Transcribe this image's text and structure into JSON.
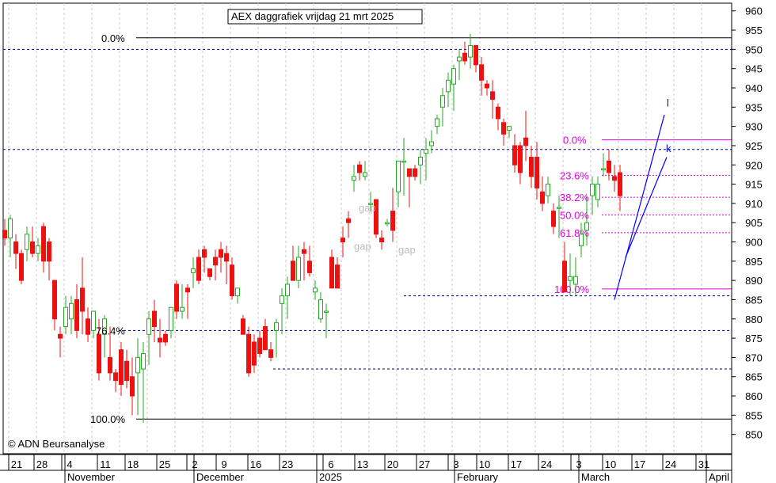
{
  "chart_data": {
    "type": "candlestick",
    "title": "AEX daggrafiek vrijdag 21 mrt 2025",
    "copyright": "© ADN Beursanalyse",
    "ylim": [
      845,
      962
    ],
    "y_ticks": [
      850,
      855,
      860,
      865,
      870,
      875,
      880,
      885,
      890,
      895,
      900,
      905,
      910,
      915,
      920,
      925,
      930,
      935,
      940,
      945,
      950,
      955,
      960
    ],
    "x_day_ticks": [
      "21",
      "28",
      "4",
      "11",
      "18",
      "25",
      "2",
      "9",
      "16",
      "23",
      "6",
      "13",
      "20",
      "27",
      "3",
      "10",
      "17",
      "24",
      "3",
      "10",
      "17",
      "24",
      "31"
    ],
    "month_labels": [
      "November",
      "December",
      "2025",
      "February",
      "March",
      "April"
    ],
    "colors": {
      "up": "#22aa22",
      "down": "#ee1111",
      "fib": "#e000e0",
      "trend": "#0000ff",
      "dotted": "#000080"
    },
    "fib_left": {
      "labels": [
        "0.0%",
        "76.4%",
        "100.0%"
      ],
      "levels": [
        953,
        877,
        854
      ]
    },
    "fib_right": {
      "labels": [
        "0.0%",
        "23.6%",
        "38.2%",
        "50.0%",
        "61.8%",
        "100.0%"
      ],
      "levels": [
        926.5,
        917.3,
        911.6,
        907.0,
        902.4,
        887.8
      ]
    },
    "horizontal_lines": [
      950,
      924,
      877,
      867,
      886
    ],
    "gap_labels": [
      "gap",
      "gap",
      "gap"
    ],
    "trend_labels": [
      "l",
      "k"
    ],
    "candles": [
      [
        903,
        906,
        899,
        901
      ],
      [
        901,
        907,
        896,
        906
      ],
      [
        900,
        902,
        893,
        897
      ],
      [
        897,
        898,
        889,
        890
      ],
      [
        898,
        904,
        895,
        902
      ],
      [
        900,
        904,
        896,
        897
      ],
      [
        897,
        901,
        895,
        899
      ],
      [
        904,
        905,
        892,
        895
      ],
      [
        900,
        901,
        890,
        895
      ],
      [
        890,
        890,
        877,
        880
      ],
      [
        876,
        878,
        870,
        875
      ],
      [
        878,
        886,
        876,
        883
      ],
      [
        880,
        886,
        876,
        884
      ],
      [
        885,
        889,
        875,
        877
      ],
      [
        888,
        896,
        876,
        882
      ],
      [
        880,
        883,
        874,
        876
      ],
      [
        877,
        882,
        875,
        882
      ],
      [
        876,
        880,
        864,
        866
      ],
      [
        876,
        881,
        870,
        880
      ],
      [
        870,
        878,
        864,
        866
      ],
      [
        866,
        867,
        861,
        864
      ],
      [
        872,
        874,
        860,
        863
      ],
      [
        869,
        872,
        862,
        864
      ],
      [
        865,
        870,
        855,
        860
      ],
      [
        866,
        875,
        855,
        870
      ],
      [
        867,
        874,
        853,
        871
      ],
      [
        876,
        882,
        868,
        880
      ],
      [
        882,
        885,
        874,
        878
      ],
      [
        875,
        880,
        870,
        874
      ],
      [
        876,
        877,
        873,
        874
      ],
      [
        877,
        883,
        875,
        883
      ],
      [
        889,
        890,
        880,
        882
      ],
      [
        882,
        889,
        880,
        883
      ],
      [
        888,
        889,
        880,
        887
      ],
      [
        892,
        896,
        888,
        893
      ],
      [
        896,
        898,
        889,
        890
      ],
      [
        898,
        899,
        892,
        896
      ],
      [
        893,
        893,
        890,
        891
      ],
      [
        896,
        898,
        890,
        894
      ],
      [
        898,
        900,
        892,
        896
      ],
      [
        897,
        899,
        889,
        895
      ],
      [
        894,
        896,
        885,
        886
      ],
      [
        886,
        888,
        884,
        888
      ],
      [
        880,
        881,
        876,
        876
      ],
      [
        876,
        878,
        865,
        866
      ],
      [
        874,
        876,
        866,
        868
      ],
      [
        875,
        877,
        870,
        871
      ],
      [
        878,
        880,
        872,
        872
      ],
      [
        872,
        874,
        869,
        870
      ],
      [
        877,
        880,
        870,
        879
      ],
      [
        884,
        888,
        876,
        886
      ],
      [
        886,
        891,
        880,
        889
      ],
      [
        895,
        899,
        890,
        890
      ],
      [
        890,
        899,
        888,
        896
      ],
      [
        898,
        900,
        890,
        897
      ],
      [
        895,
        899,
        891,
        892
      ],
      [
        887,
        890,
        885,
        888
      ],
      [
        880,
        887,
        879,
        885
      ],
      [
        882,
        884,
        875,
        882
      ],
      [
        896,
        898,
        888,
        888
      ],
      [
        894,
        896,
        888,
        888
      ],
      [
        901,
        904,
        896,
        900
      ],
      [
        906,
        908,
        901,
        905
      ],
      [
        916,
        920,
        913,
        917
      ],
      [
        920,
        921,
        916,
        918
      ],
      [
        917,
        921,
        916,
        918
      ],
      [
        910,
        913,
        908,
        910
      ],
      [
        911,
        911,
        901,
        902
      ],
      [
        901,
        903,
        898,
        900
      ],
      [
        905,
        906,
        904,
        905
      ],
      [
        908,
        914,
        900,
        903
      ],
      [
        913,
        921,
        909,
        921
      ],
      [
        921,
        927,
        912,
        921
      ],
      [
        919,
        919,
        909,
        917
      ],
      [
        919,
        920,
        916,
        917
      ],
      [
        920,
        924,
        915,
        922
      ],
      [
        923,
        927,
        916,
        924
      ],
      [
        925,
        929,
        923,
        926
      ],
      [
        930,
        933,
        928,
        932
      ],
      [
        935,
        940,
        930,
        938
      ],
      [
        939,
        944,
        935,
        942
      ],
      [
        941,
        946,
        934,
        945
      ],
      [
        947,
        950,
        942,
        948
      ],
      [
        949,
        952,
        946,
        947
      ],
      [
        948,
        954,
        945,
        951
      ],
      [
        951,
        951,
        944,
        946
      ],
      [
        946,
        948,
        938,
        942
      ],
      [
        941,
        942,
        938,
        940
      ],
      [
        939,
        942,
        932,
        937
      ],
      [
        935,
        936,
        929,
        932
      ],
      [
        931,
        932,
        925,
        928
      ],
      [
        929,
        930,
        927,
        930
      ],
      [
        925,
        928,
        918,
        920
      ],
      [
        925,
        926,
        915,
        918
      ],
      [
        927,
        934,
        921,
        925
      ],
      [
        922,
        925,
        914,
        917
      ],
      [
        922,
        926,
        911,
        914
      ],
      [
        913,
        917,
        908,
        910
      ],
      [
        912,
        917,
        910,
        915
      ],
      [
        908,
        910,
        902,
        904
      ],
      [
        909,
        912,
        901,
        909
      ],
      [
        895,
        900,
        887,
        887
      ],
      [
        890,
        897,
        886,
        891
      ],
      [
        889,
        896,
        886,
        891
      ],
      [
        899,
        905,
        896,
        902
      ],
      [
        903,
        912,
        899,
        905
      ],
      [
        912,
        917,
        907,
        915
      ],
      [
        911,
        917,
        909,
        915
      ],
      [
        919,
        923,
        917,
        919
      ],
      [
        921,
        924,
        916,
        918
      ],
      [
        917,
        920,
        913,
        916
      ],
      [
        918,
        920,
        908,
        912
      ]
    ]
  }
}
